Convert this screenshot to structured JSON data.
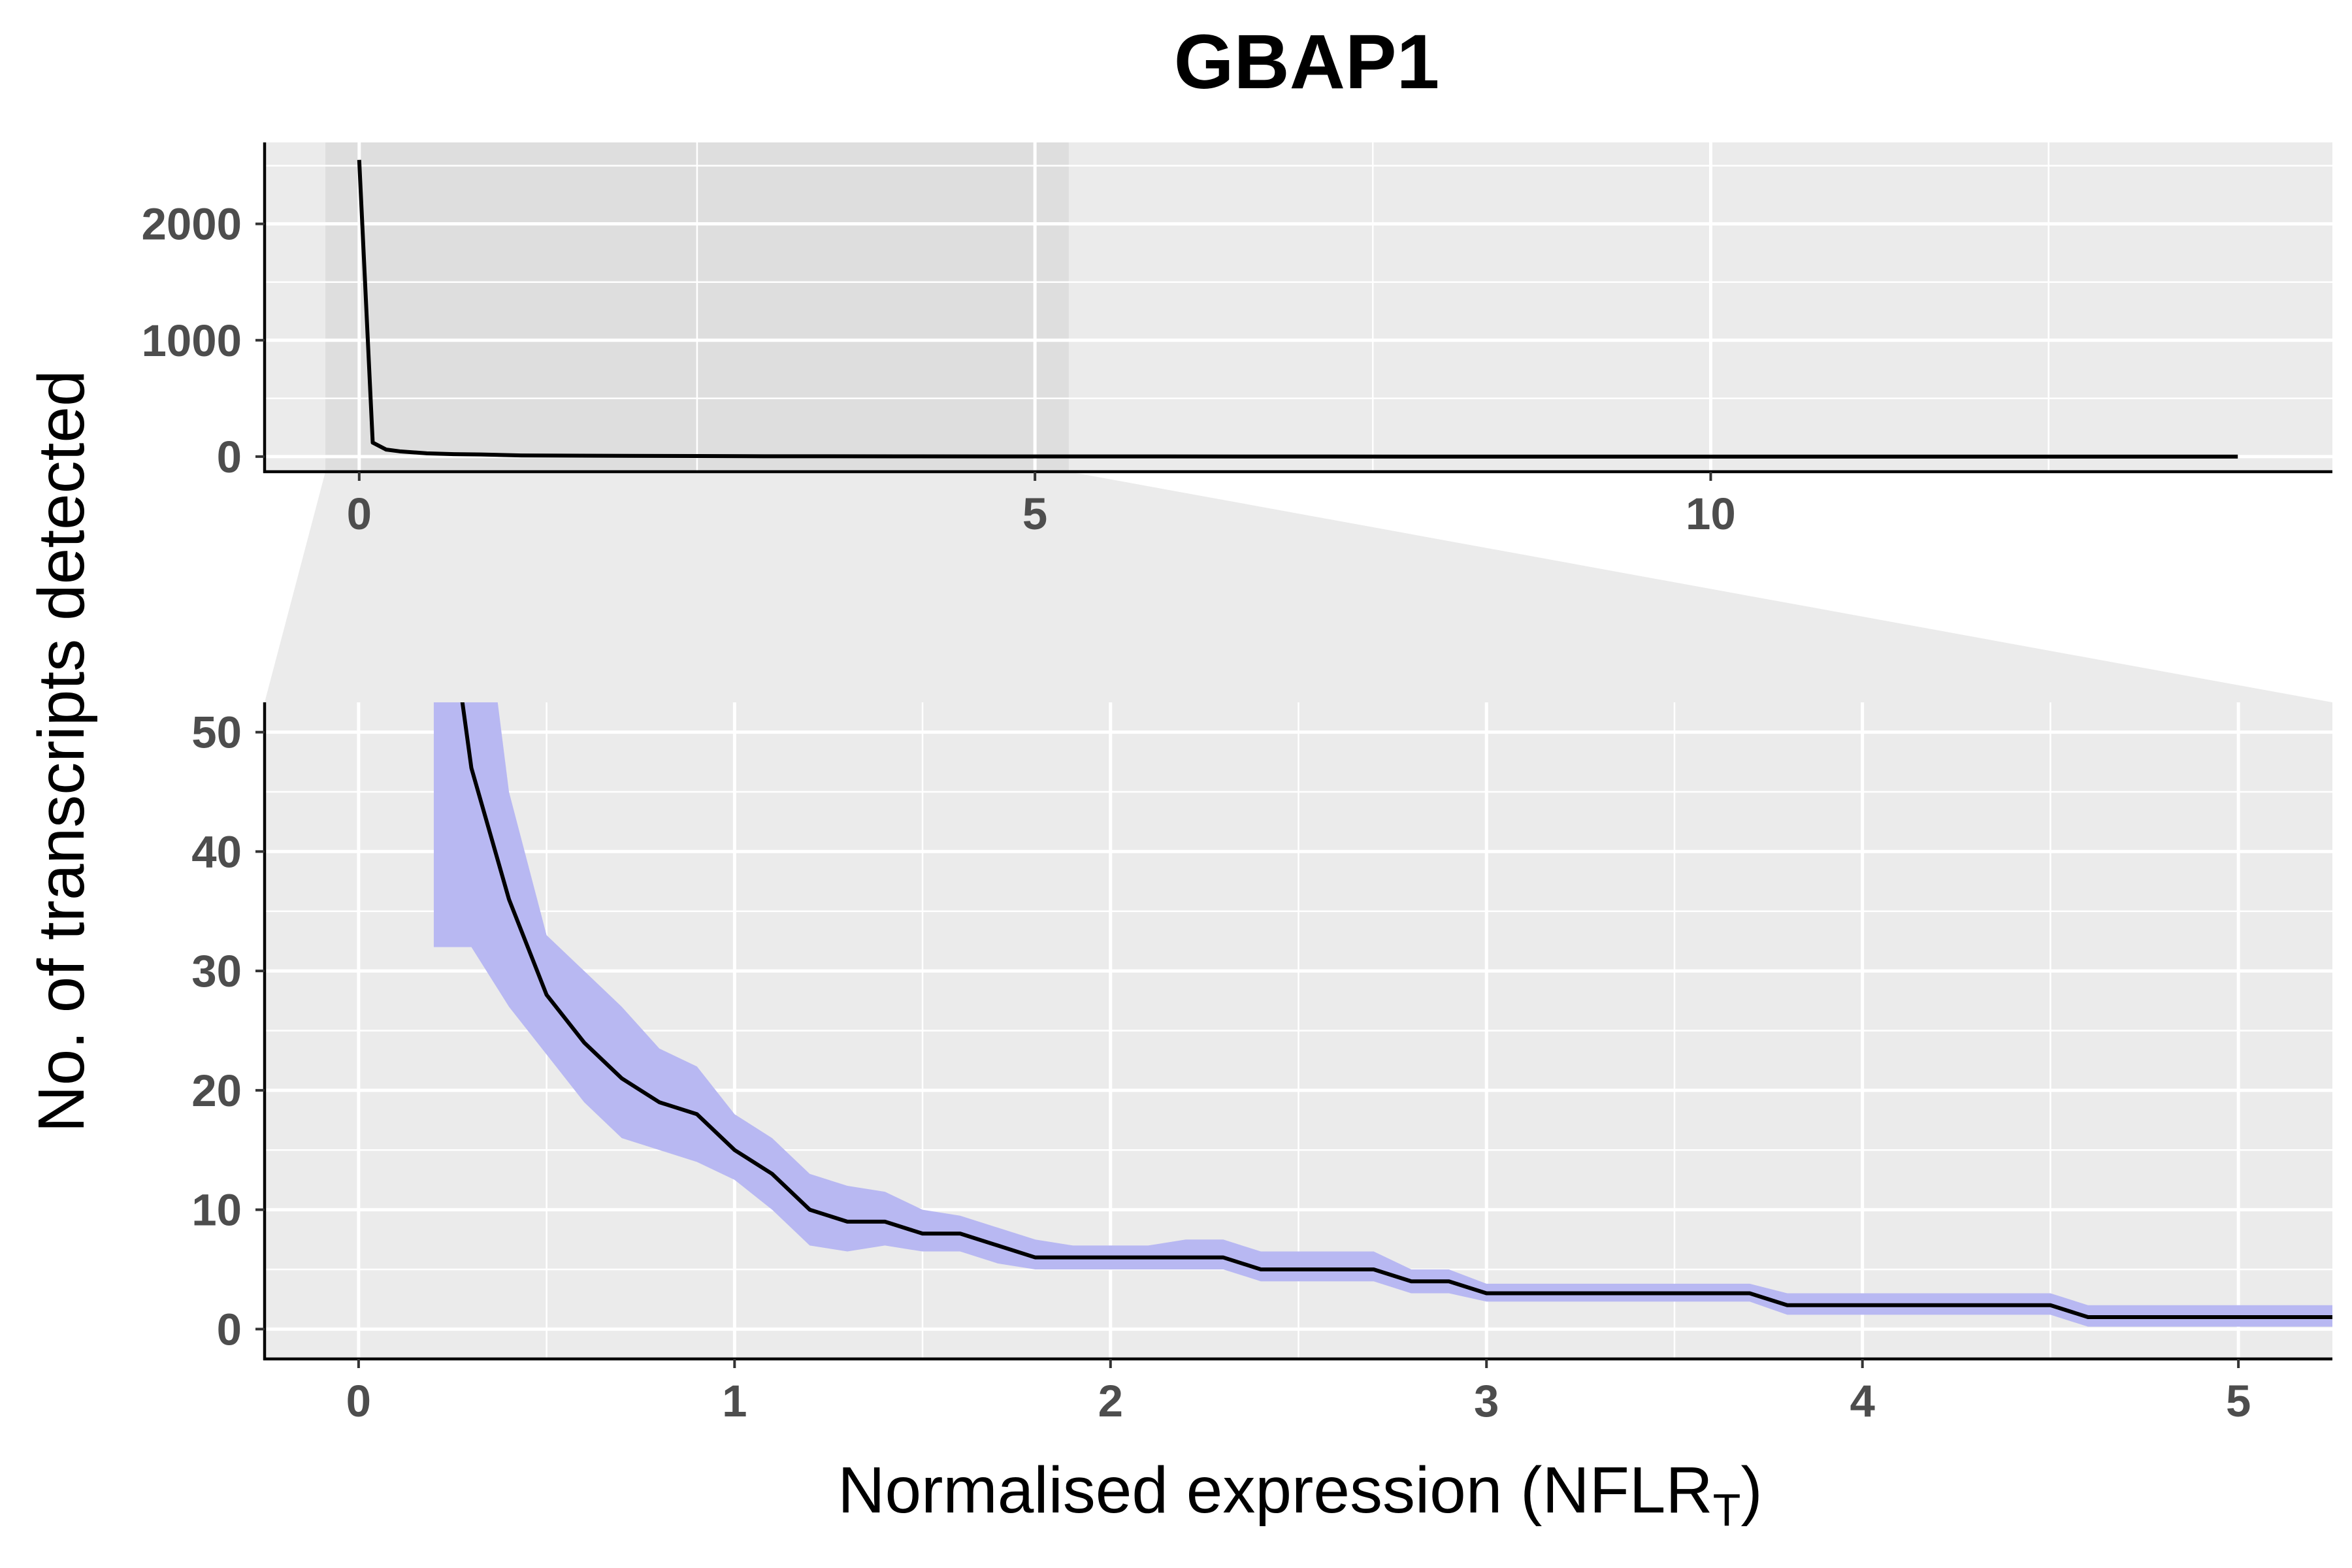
{
  "chart_data": {
    "type": "line",
    "title": "GBAP1",
    "ylabel": "No. of transcripts detected",
    "xlabel": "Normalised expression (NFLR",
    "xlabel_subscript": "T",
    "xlabel_suffix": ")",
    "panels": [
      {
        "id": "overview",
        "xlim": [
          -0.7,
          14.6
        ],
        "ylim": [
          -130,
          2700
        ],
        "x_ticks": [
          0,
          5,
          10
        ],
        "y_ticks": [
          0,
          1000,
          2000
        ],
        "highlight_x_range": [
          -0.25,
          5.25
        ],
        "series": [
          {
            "x": [
              0,
              0.1,
              0.2,
              0.3,
              0.5,
              0.7,
              0.9,
              1.2,
              1.5,
              2,
              2.5,
              3,
              4,
              5,
              6,
              8,
              10,
              12,
              13.9
            ],
            "y": [
              2550,
              120,
              60,
              45,
              28,
              21,
              18,
              10,
              8,
              6,
              5,
              3,
              2,
              1,
              1,
              0,
              0,
              0,
              0
            ]
          }
        ]
      },
      {
        "id": "zoom",
        "xlim": [
          -0.25,
          5.25
        ],
        "ylim": [
          -2.5,
          52.5
        ],
        "x_ticks": [
          0,
          1,
          2,
          3,
          4,
          5
        ],
        "y_ticks": [
          0,
          10,
          20,
          30,
          40,
          50
        ],
        "series": [
          {
            "x": [
              0.2,
              0.3,
              0.4,
              0.5,
              0.6,
              0.7,
              0.8,
              0.9,
              1.0,
              1.1,
              1.2,
              1.3,
              1.4,
              1.5,
              1.6,
              1.7,
              1.8,
              1.9,
              2.0,
              2.1,
              2.2,
              2.3,
              2.4,
              2.5,
              2.6,
              2.7,
              2.8,
              2.9,
              3.0,
              3.1,
              3.2,
              3.3,
              3.4,
              3.5,
              3.6,
              3.7,
              3.8,
              3.9,
              4.0,
              4.1,
              4.2,
              4.3,
              4.4,
              4.5,
              4.6,
              4.7,
              4.8,
              4.9,
              5.0,
              5.1,
              5.25
            ],
            "y": [
              70,
              47,
              36,
              28,
              24,
              21,
              19,
              18,
              15,
              13,
              10,
              9,
              9,
              8,
              8,
              7,
              6,
              6,
              6,
              6,
              6,
              6,
              5,
              5,
              5,
              5,
              4,
              4,
              3,
              3,
              3,
              3,
              3,
              3,
              3,
              3,
              2,
              2,
              2,
              2,
              2,
              2,
              2,
              2,
              1,
              1,
              1,
              1,
              1,
              1,
              1
            ],
            "y_lower": [
              32,
              32,
              27,
              23,
              19,
              16,
              15,
              14,
              12.5,
              10,
              7,
              6.5,
              7,
              6.5,
              6.5,
              5.5,
              5,
              5,
              5,
              5,
              5,
              5,
              4,
              4,
              4,
              4,
              3,
              3,
              2.3,
              2.3,
              2.3,
              2.3,
              2.3,
              2.3,
              2.3,
              2.3,
              1.2,
              1.2,
              1.2,
              1.2,
              1.2,
              1.2,
              1.2,
              1.2,
              0.2,
              0.2,
              0.2,
              0.2,
              0.2,
              0.2,
              0.2
            ],
            "y_upper": [
              70,
              70,
              45,
              33,
              30,
              27,
              23.5,
              22,
              18,
              16,
              13,
              12,
              11.5,
              10,
              9.5,
              8.5,
              7.5,
              7,
              7,
              7,
              7.5,
              7.5,
              6.5,
              6.5,
              6.5,
              6.5,
              5,
              5,
              3.8,
              3.8,
              3.8,
              3.8,
              3.8,
              3.8,
              3.8,
              3.8,
              3,
              3,
              3,
              3,
              3,
              3,
              3,
              3,
              2,
              2,
              2,
              2,
              2,
              2,
              2
            ]
          }
        ]
      }
    ],
    "colors": {
      "panel_bg": "#ebebeb",
      "grid": "#ffffff",
      "highlight": "#dedede",
      "connector": "#ebebeb",
      "line": "#000000",
      "ribbon": "#b8b8f2",
      "tick_text": "#4d4d4d"
    }
  }
}
